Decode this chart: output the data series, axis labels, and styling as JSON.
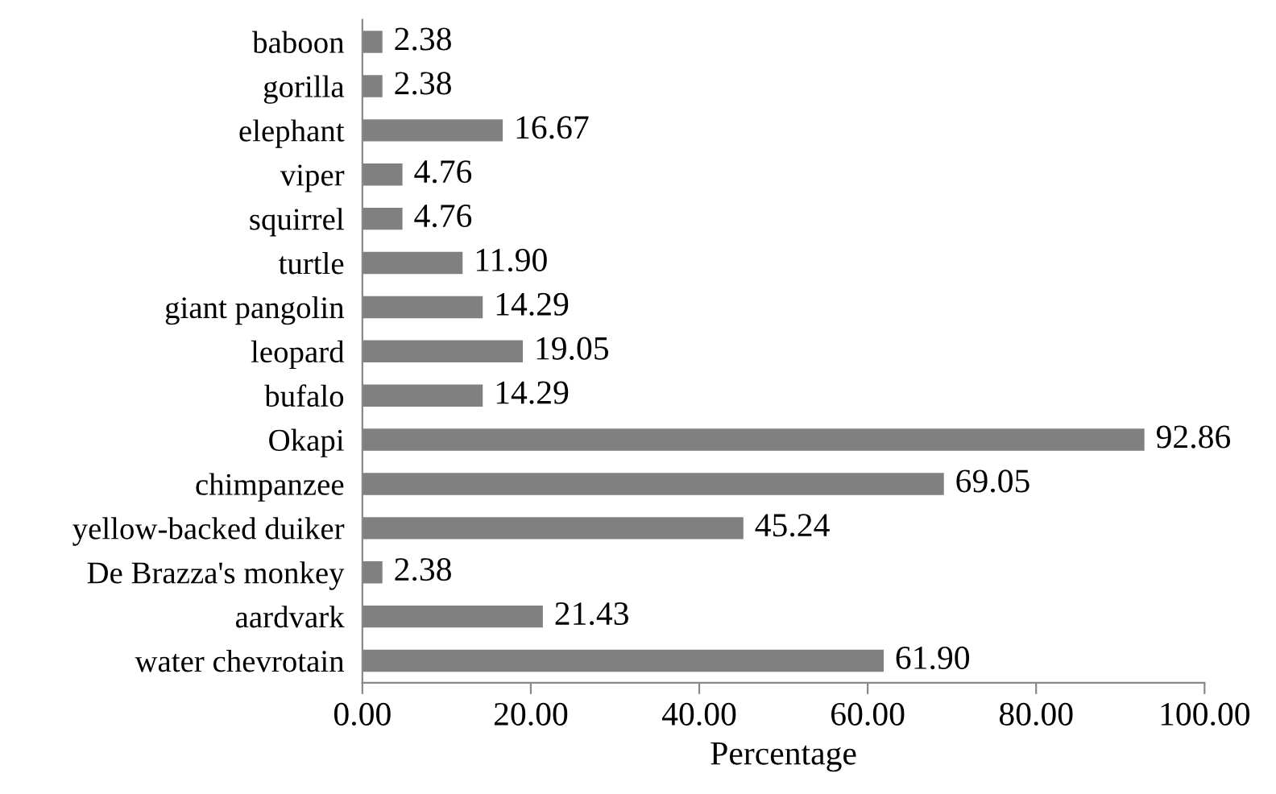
{
  "chart_data": {
    "type": "bar",
    "orientation": "horizontal",
    "xlabel": "Percentage",
    "categories": [
      "baboon",
      "gorilla",
      "elephant",
      "viper",
      "squirrel",
      "turtle",
      "giant pangolin",
      "leopard",
      "bufalo",
      "Okapi",
      "chimpanzee",
      "yellow-backed duiker",
      "De Brazza's monkey",
      "aardvark",
      "water chevrotain"
    ],
    "values": [
      2.38,
      2.38,
      16.67,
      4.76,
      4.76,
      11.9,
      14.29,
      19.05,
      14.29,
      92.86,
      69.05,
      45.24,
      2.38,
      21.43,
      61.9
    ],
    "value_labels": [
      "2.38",
      "2.38",
      "16.67",
      "4.76",
      "4.76",
      "11.90",
      "14.29",
      "19.05",
      "14.29",
      "92.86",
      "69.05",
      "45.24",
      "2.38",
      "21.43",
      "61.90"
    ],
    "color": "#808080",
    "xlim": [
      0,
      100
    ],
    "xticks": [
      {
        "value": 0,
        "label": "0.00"
      },
      {
        "value": 20,
        "label": "20.00"
      },
      {
        "value": 40,
        "label": "40.00"
      },
      {
        "value": 60,
        "label": "60.00"
      },
      {
        "value": 80,
        "label": "80.00"
      },
      {
        "value": 100,
        "label": "100.00"
      }
    ],
    "grid": false,
    "legend": false
  }
}
